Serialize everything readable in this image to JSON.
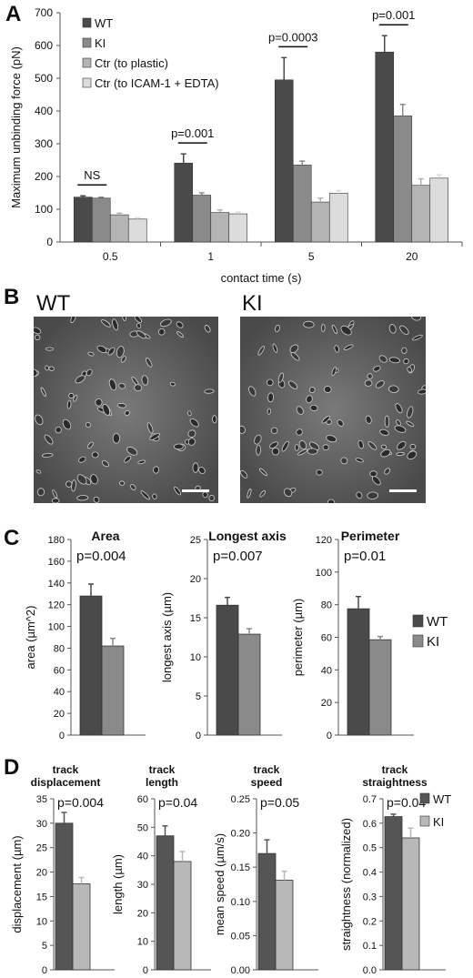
{
  "colors": {
    "wt": "#4a4a4a",
    "ki": "#8a8a8a",
    "ctr_plastic": "#b4b4b4",
    "ctr_icam": "#dcdcdc",
    "d_wt": "#555555",
    "d_ki": "#b8b8b8"
  },
  "panel_a": {
    "letter": "A",
    "chart_data": {
      "type": "bar",
      "categories": [
        "0.5",
        "1",
        "5",
        "20"
      ],
      "xlabel": "contact time (s)",
      "ylabel": "Maximum unbinding force (pN)",
      "ylim": [
        0,
        700
      ],
      "yticks": [
        0,
        100,
        200,
        300,
        400,
        500,
        600,
        700
      ],
      "legend_position": "top-left",
      "series": [
        {
          "name": "WT",
          "values": [
            137,
            241,
            495,
            580
          ],
          "errors": [
            4,
            28,
            68,
            50
          ]
        },
        {
          "name": "KI",
          "values": [
            134,
            143,
            235,
            385
          ],
          "errors": [
            3,
            7,
            12,
            35
          ]
        },
        {
          "name": "Ctr (to plastic)",
          "values": [
            83,
            90,
            122,
            173
          ],
          "errors": [
            5,
            8,
            12,
            20
          ]
        },
        {
          "name": "Ctr (to ICAM-1 + EDTA)",
          "values": [
            70,
            86,
            149,
            195
          ],
          "errors": [
            4,
            5,
            8,
            10
          ]
        }
      ],
      "annotations": [
        "NS",
        "p=0.001",
        "p=0.0003",
        "p=0.001"
      ]
    }
  },
  "panel_b": {
    "letter": "B",
    "images": [
      {
        "label": "WT"
      },
      {
        "label": "KI"
      }
    ]
  },
  "panel_c": {
    "letter": "C",
    "legend": [
      "WT",
      "KI"
    ],
    "chart_data": [
      {
        "type": "bar",
        "title": "Area",
        "pvalue": "p=0.004",
        "ylabel": "area (µm^2)",
        "ylim": [
          0,
          180
        ],
        "yticks": [
          0,
          20,
          40,
          60,
          80,
          100,
          120,
          140,
          160,
          180
        ],
        "categories": [
          "WT",
          "KI"
        ],
        "values": [
          128,
          82
        ],
        "errors": [
          11,
          7
        ]
      },
      {
        "type": "bar",
        "title": "Longest axis",
        "pvalue": "p=0.007",
        "ylabel": "longest axis (µm)",
        "ylim": [
          0,
          25
        ],
        "yticks": [
          0,
          5,
          10,
          15,
          20,
          25
        ],
        "categories": [
          "WT",
          "KI"
        ],
        "values": [
          16.6,
          12.9
        ],
        "errors": [
          1.0,
          0.7
        ]
      },
      {
        "type": "bar",
        "title": "Perimeter",
        "pvalue": "p=0.01",
        "ylabel": "perimeter (µm)",
        "ylim": [
          0,
          120
        ],
        "yticks": [
          0,
          20,
          40,
          60,
          80,
          100,
          120
        ],
        "categories": [
          "WT",
          "KI"
        ],
        "values": [
          77.5,
          58.5
        ],
        "errors": [
          7.5,
          2.0
        ]
      }
    ]
  },
  "panel_d": {
    "letter": "D",
    "legend": [
      "WT",
      "KI"
    ],
    "chart_data": [
      {
        "type": "bar",
        "title": [
          "track",
          "displacement"
        ],
        "pvalue": "p=0.004",
        "ylabel": "displacement (µm)",
        "ylim": [
          0,
          35
        ],
        "yticks": [
          0,
          5,
          10,
          15,
          20,
          25,
          30,
          35
        ],
        "tick_format": "int",
        "categories": [
          "WT",
          "KI"
        ],
        "values": [
          30,
          17.6
        ],
        "errors": [
          2.2,
          1.3
        ]
      },
      {
        "type": "bar",
        "title": [
          "track",
          "length"
        ],
        "pvalue": "p=0.04",
        "ylabel": "length (µm)",
        "ylim": [
          0,
          60
        ],
        "yticks": [
          0,
          10,
          20,
          30,
          40,
          50,
          60
        ],
        "tick_format": "int",
        "categories": [
          "WT",
          "KI"
        ],
        "values": [
          47,
          38
        ],
        "errors": [
          3.5,
          3.5
        ]
      },
      {
        "type": "bar",
        "title": [
          "track",
          "speed"
        ],
        "pvalue": "p=0.05",
        "ylabel": "mean speed (µm/s)",
        "ylim": [
          0,
          0.25
        ],
        "yticks": [
          0,
          0.05,
          0.1,
          0.15,
          0.2,
          0.25
        ],
        "tick_format": "2dp",
        "categories": [
          "WT",
          "KI"
        ],
        "values": [
          0.17,
          0.131
        ],
        "errors": [
          0.02,
          0.013
        ]
      },
      {
        "type": "bar",
        "title": [
          "track",
          "straightness"
        ],
        "pvalue": "p=0.04",
        "ylabel": "straightness (normalized)",
        "ylim": [
          0,
          0.7
        ],
        "yticks": [
          0,
          0.1,
          0.2,
          0.3,
          0.4,
          0.5,
          0.6,
          0.7
        ],
        "tick_format": "1dp",
        "categories": [
          "WT",
          "KI"
        ],
        "values": [
          0.627,
          0.54
        ],
        "errors": [
          0.01,
          0.04
        ]
      }
    ]
  }
}
